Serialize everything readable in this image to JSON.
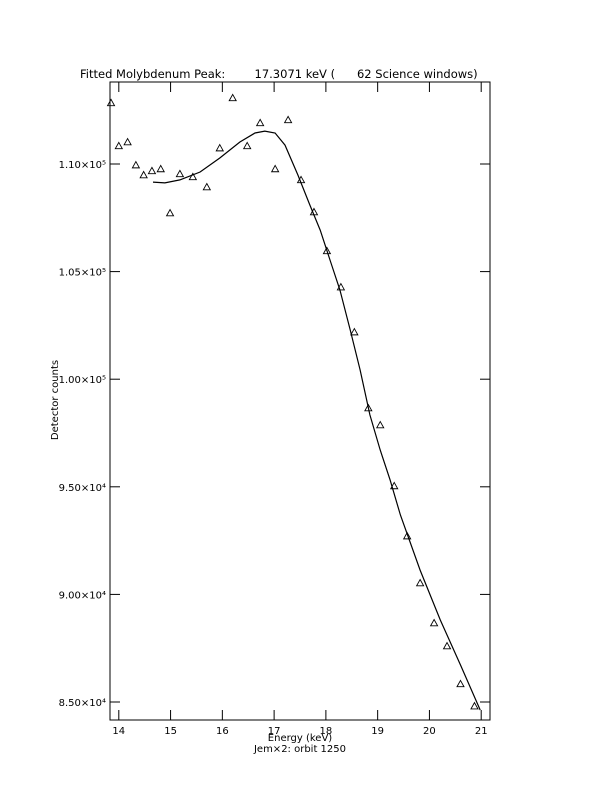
{
  "chart_data": {
    "type": "scatter",
    "title": "Fitted Molybdenum Peak:        17.3071 keV (      62 Science windows)",
    "x_label": "Energy (keV)",
    "subtitle": "Jem×2: orbit 1250",
    "y_label": "Detector counts",
    "xlim": [
      13.83,
      21.17
    ],
    "ylim": [
      84164,
      113810
    ],
    "xticks": [
      14,
      15,
      16,
      17,
      18,
      19,
      20,
      21
    ],
    "yticks": [
      {
        "value": 85000,
        "label": "8.50×10⁴"
      },
      {
        "value": 90000,
        "label": "9.00×10⁴"
      },
      {
        "value": 95000,
        "label": "9.50×10⁴"
      },
      {
        "value": 100000,
        "label": "1.00×10⁵"
      },
      {
        "value": 105000,
        "label": "1.05×10⁵"
      },
      {
        "value": 110000,
        "label": "1.10×10⁵"
      }
    ],
    "series": [
      {
        "mode": "markers",
        "marker": "triangle",
        "color": "#000000",
        "x": [
          13.85,
          14.0,
          14.17,
          14.33,
          14.48,
          14.64,
          14.81,
          14.99,
          15.18,
          15.43,
          15.7,
          15.95,
          16.2,
          16.48,
          16.73,
          17.02,
          17.27,
          17.52,
          17.77,
          18.02,
          18.29,
          18.55,
          18.82,
          19.05,
          19.32,
          19.57,
          19.82,
          20.09,
          20.34,
          20.6,
          20.87
        ],
        "values": [
          112840,
          110840,
          111020,
          109950,
          109490,
          109680,
          109770,
          107720,
          109540,
          109400,
          108930,
          110740,
          113070,
          110840,
          111910,
          109770,
          112050,
          109260,
          107770,
          105960,
          104280,
          102190,
          98660,
          97870,
          95040,
          92710,
          90530,
          88670,
          87600,
          85840,
          84810
        ]
      },
      {
        "mode": "line",
        "color": "#000000",
        "x": [
          14.66,
          14.89,
          15.18,
          15.57,
          15.95,
          16.34,
          16.63,
          16.82,
          17.02,
          17.21,
          17.46,
          17.69,
          17.89,
          18.08,
          18.27,
          18.47,
          18.66,
          18.85,
          19.05,
          19.24,
          19.44,
          19.82,
          20.21,
          20.6,
          20.98
        ],
        "values": [
          109160,
          109120,
          109260,
          109630,
          110280,
          111020,
          111440,
          111530,
          111440,
          110880,
          109490,
          108100,
          106930,
          105540,
          104150,
          102290,
          100430,
          98340,
          96710,
          95320,
          93690,
          91130,
          88810,
          86720,
          84630
        ]
      }
    ]
  }
}
